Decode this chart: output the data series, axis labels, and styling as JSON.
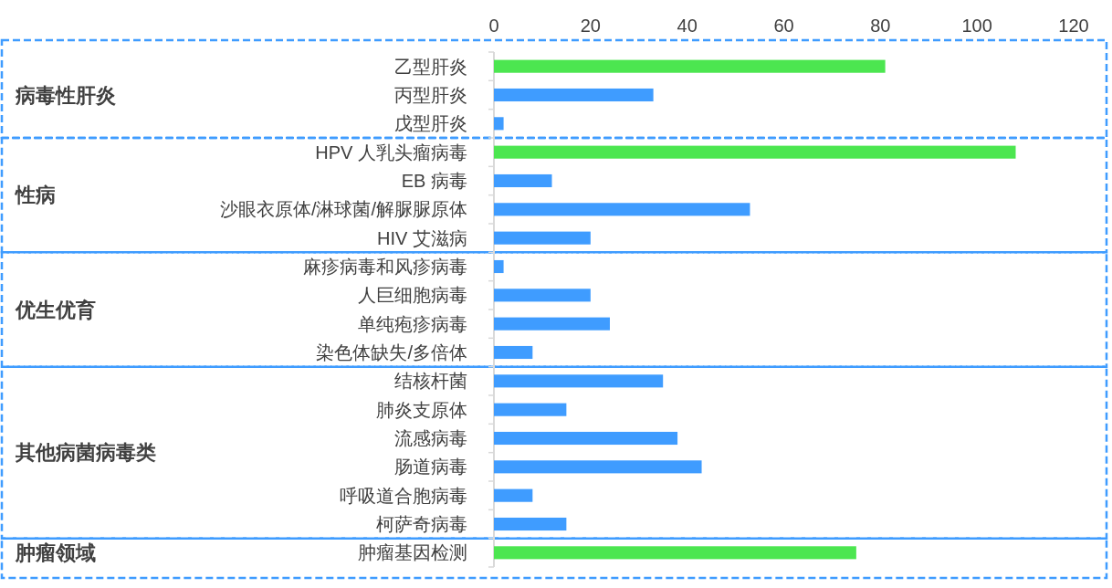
{
  "chart_data": {
    "type": "bar",
    "orientation": "horizontal",
    "categories": [
      "乙型肝炎",
      "丙型肝炎",
      "戊型肝炎",
      "HPV 人乳头瘤病毒",
      "EB 病毒",
      "沙眼衣原体/淋球菌/解脲脲原体",
      "HIV 艾滋病",
      "麻疹病毒和风疹病毒",
      "人巨细胞病毒",
      "单纯疱疹病毒",
      "染色体缺失/多倍体",
      "结核杆菌",
      "肺炎支原体",
      "流感病毒",
      "肠道病毒",
      "呼吸道合胞病毒",
      "柯萨奇病毒",
      "肿瘤基因检测"
    ],
    "values": [
      81,
      33,
      2,
      108,
      12,
      53,
      20,
      2,
      20,
      24,
      8,
      35,
      15,
      38,
      43,
      8,
      15,
      75
    ],
    "colors": [
      "#4ce650",
      "#3f9cff",
      "#3f9cff",
      "#4ce650",
      "#3f9cff",
      "#3f9cff",
      "#3f9cff",
      "#3f9cff",
      "#3f9cff",
      "#3f9cff",
      "#3f9cff",
      "#3f9cff",
      "#3f9cff",
      "#3f9cff",
      "#3f9cff",
      "#3f9cff",
      "#3f9cff",
      "#4ce650"
    ],
    "xlim": [
      0,
      120
    ],
    "xticks": [
      0,
      20,
      40,
      60,
      80,
      100,
      120
    ],
    "annotations": [
      "病毒性肝炎",
      "性病",
      "优生优育",
      "其他病菌病毒类",
      "肿瘤领域"
    ]
  }
}
